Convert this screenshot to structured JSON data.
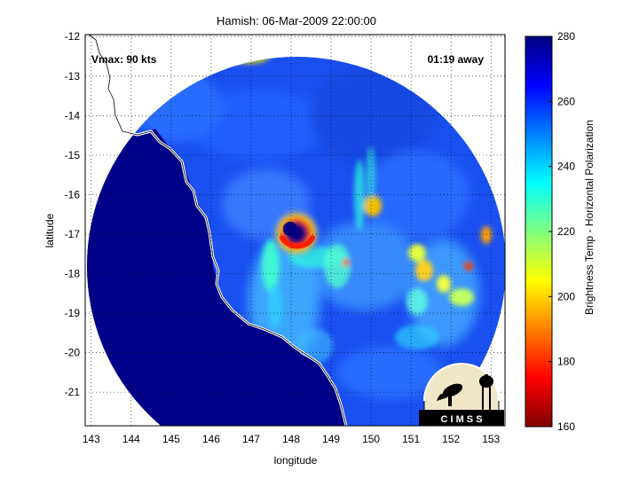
{
  "title": "Hamish: 06-Mar-2009 22:00:00",
  "xlabel": "longitude",
  "ylabel": "latitude",
  "colorbar_label": "Brightness Temp - Horizontal Polarization",
  "annotations": {
    "vmax": "Vmax: 90 kts",
    "time_away": "01:19 away"
  },
  "logo": {
    "text": "C I M S S"
  },
  "x_ticks": [
    "143",
    "144",
    "145",
    "146",
    "147",
    "148",
    "149",
    "150",
    "151",
    "152",
    "153"
  ],
  "y_ticks": [
    "-12",
    "-13",
    "-14",
    "-15",
    "-16",
    "-17",
    "-18",
    "-19",
    "-20",
    "-21"
  ],
  "colorbar_ticks": [
    "280",
    "260",
    "240",
    "220",
    "200",
    "180",
    "160"
  ],
  "colors": {
    "land_sea_low": "#000080",
    "coast": "#ffffff",
    "eye": "#ff2000"
  },
  "chart_data": {
    "type": "heatmap",
    "title": "Hamish: 06-Mar-2009 22:00:00",
    "xlabel": "longitude",
    "ylabel": "latitude",
    "xlim": [
      142.85,
      153.35
    ],
    "ylim": [
      -21.85,
      -11.95
    ],
    "grid": true,
    "colorbar": {
      "label": "Brightness Temp - Horizontal Polarization",
      "range": [
        160,
        280
      ]
    },
    "storm_center": {
      "lon": 148.1,
      "lat": -16.9
    },
    "vmax_kts": 90
  }
}
